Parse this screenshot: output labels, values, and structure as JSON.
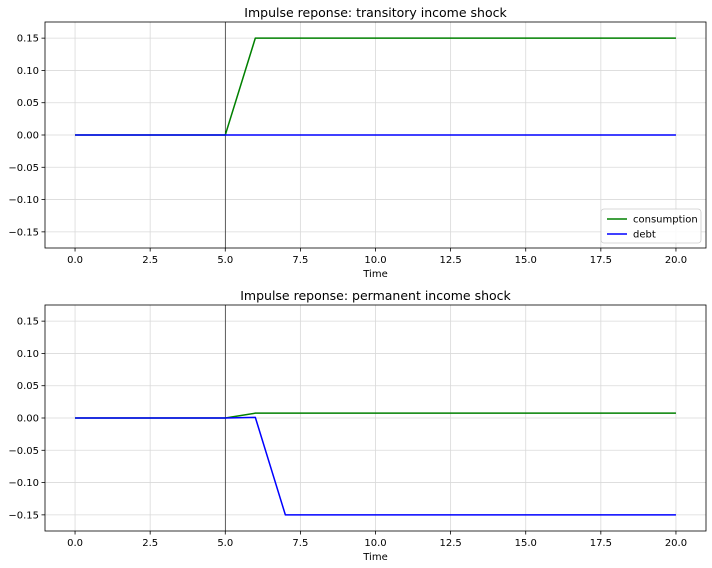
{
  "chart_data": [
    {
      "type": "line",
      "title": "Impulse reponse: transitory income shock",
      "xlabel": "Time",
      "ylabel": "",
      "xlim": [
        -1,
        21
      ],
      "ylim": [
        -0.175,
        0.175
      ],
      "xticks": [
        0,
        2.5,
        5,
        7.5,
        10,
        12.5,
        15,
        17.5,
        20
      ],
      "xtick_labels": [
        "0.0",
        "2.5",
        "5.0",
        "7.5",
        "10.0",
        "12.5",
        "15.0",
        "17.5",
        "20.0"
      ],
      "yticks": [
        -0.15,
        -0.1,
        -0.05,
        0.0,
        0.05,
        0.1,
        0.15
      ],
      "ytick_labels": [
        "−0.15",
        "−0.10",
        "−0.05",
        "0.00",
        "0.05",
        "0.10",
        "0.15"
      ],
      "grid": true,
      "vline_x": 5,
      "legend": "lower-right",
      "x": [
        0,
        1,
        2,
        3,
        4,
        5,
        6,
        7,
        8,
        9,
        10,
        11,
        12,
        13,
        14,
        15,
        16,
        17,
        18,
        19,
        20
      ],
      "series": [
        {
          "name": "consumption",
          "color": "#008000",
          "values": [
            0,
            0,
            0,
            0,
            0,
            0,
            0.15,
            0.15,
            0.15,
            0.15,
            0.15,
            0.15,
            0.15,
            0.15,
            0.15,
            0.15,
            0.15,
            0.15,
            0.15,
            0.15,
            0.15
          ]
        },
        {
          "name": "debt",
          "color": "#0000ff",
          "values": [
            0,
            0,
            0,
            0,
            0,
            0,
            0,
            0,
            0,
            0,
            0,
            0,
            0,
            0,
            0,
            0,
            0,
            0,
            0,
            0,
            0
          ]
        }
      ]
    },
    {
      "type": "line",
      "title": "Impulse reponse: permanent income shock",
      "xlabel": "Time",
      "ylabel": "",
      "xlim": [
        -1,
        21
      ],
      "ylim": [
        -0.175,
        0.175
      ],
      "xticks": [
        0,
        2.5,
        5,
        7.5,
        10,
        12.5,
        15,
        17.5,
        20
      ],
      "xtick_labels": [
        "0.0",
        "2.5",
        "5.0",
        "7.5",
        "10.0",
        "12.5",
        "15.0",
        "17.5",
        "20.0"
      ],
      "yticks": [
        -0.15,
        -0.1,
        -0.05,
        0.0,
        0.05,
        0.1,
        0.15
      ],
      "ytick_labels": [
        "−0.15",
        "−0.10",
        "−0.05",
        "0.00",
        "0.05",
        "0.10",
        "0.15"
      ],
      "grid": true,
      "vline_x": 5,
      "legend": "none",
      "x": [
        0,
        1,
        2,
        3,
        4,
        5,
        6,
        7,
        8,
        9,
        10,
        11,
        12,
        13,
        14,
        15,
        16,
        17,
        18,
        19,
        20
      ],
      "series": [
        {
          "name": "consumption",
          "color": "#008000",
          "values": [
            0,
            0,
            0,
            0,
            0,
            0,
            0.0075,
            0.0075,
            0.0075,
            0.0075,
            0.0075,
            0.0075,
            0.0075,
            0.0075,
            0.0075,
            0.0075,
            0.0075,
            0.0075,
            0.0075,
            0.0075,
            0.0075
          ]
        },
        {
          "name": "debt",
          "color": "#0000ff",
          "values": [
            0,
            0,
            0,
            0,
            0,
            0,
            0.001,
            -0.15,
            -0.15,
            -0.15,
            -0.15,
            -0.15,
            -0.15,
            -0.15,
            -0.15,
            -0.15,
            -0.15,
            -0.15,
            -0.15,
            -0.15,
            -0.15
          ]
        }
      ]
    }
  ]
}
